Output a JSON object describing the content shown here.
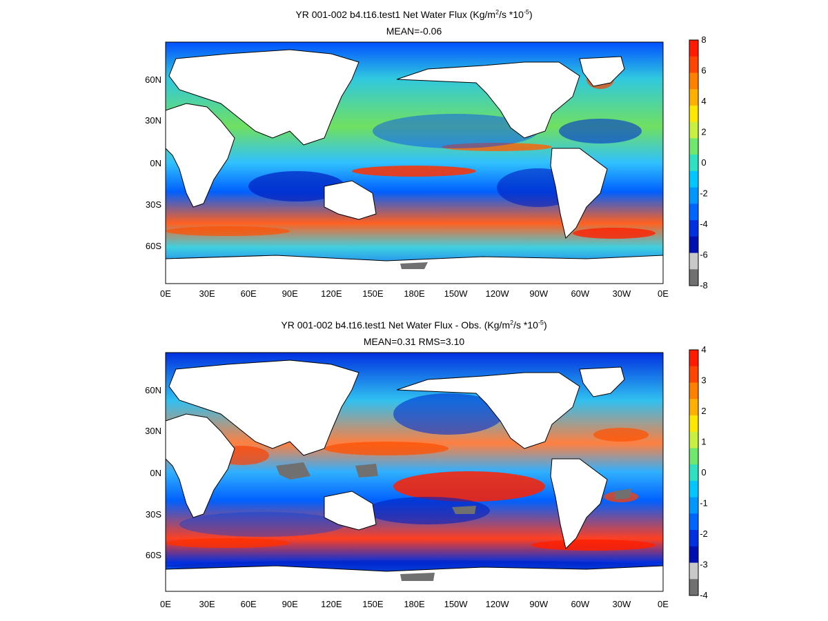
{
  "panels": [
    {
      "title_main": "YR 001-002 b4.t16.test1  Net Water Flux (Kg/m",
      "title_sup1": "2",
      "title_mid": "/s *10",
      "title_sup2": "-5",
      "title_end": ")",
      "subtitle": "MEAN=-0.06",
      "colorbar_ticks": [
        "8",
        "6",
        "4",
        "2",
        "0",
        "-2",
        "-4",
        "-6",
        "-8"
      ]
    },
    {
      "title_main": "YR 001-002 b4.t16.test1  Net Water Flux - Obs. (Kg/m",
      "title_sup1": "2",
      "title_mid": "/s *10",
      "title_sup2": "-5",
      "title_end": ")",
      "subtitle": "MEAN=0.31 RMS=3.10",
      "colorbar_ticks": [
        "4",
        "3",
        "2",
        "1",
        "0",
        "-1",
        "-2",
        "-3",
        "-4"
      ]
    }
  ],
  "lat_labels": [
    "60N",
    "30N",
    "0N",
    "30S",
    "60S"
  ],
  "lon_labels": [
    "0E",
    "30E",
    "60E",
    "90E",
    "120E",
    "150E",
    "180E",
    "150W",
    "120W",
    "90W",
    "60W",
    "30W",
    "0E"
  ],
  "colorbar_colors": [
    "#ff1a00",
    "#ff4500",
    "#ff8000",
    "#ffb000",
    "#ffe800",
    "#c8f040",
    "#70e870",
    "#30e0c0",
    "#00c8ff",
    "#0098ff",
    "#0064ff",
    "#0030e0",
    "#0010b0",
    "#c8c8c8",
    "#707070"
  ]
}
